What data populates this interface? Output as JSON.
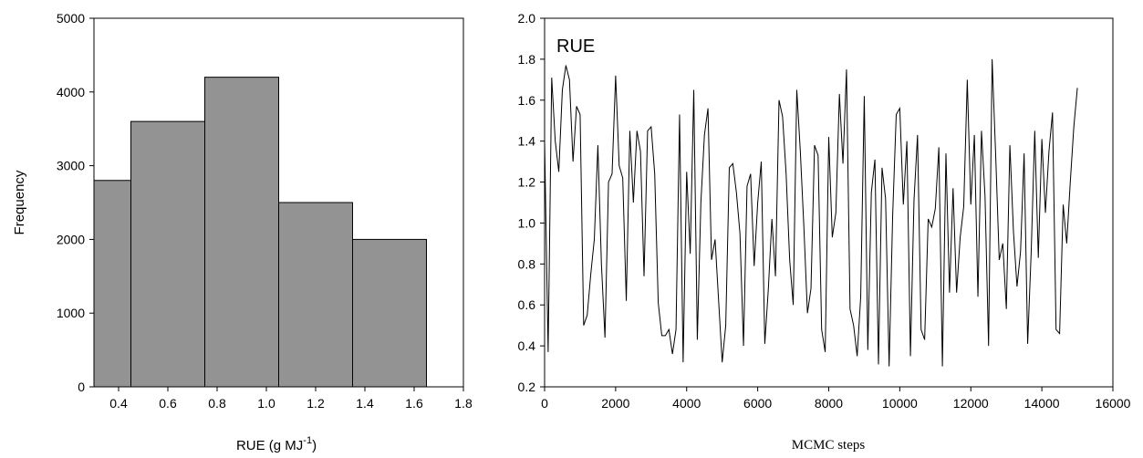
{
  "chart_data": [
    {
      "type": "bar",
      "subtype": "histogram",
      "bins": [
        {
          "start": 0.3,
          "end": 0.45,
          "value": 2800
        },
        {
          "start": 0.45,
          "end": 0.75,
          "value": 3600
        },
        {
          "start": 0.75,
          "end": 1.05,
          "value": 4200
        },
        {
          "start": 1.05,
          "end": 1.35,
          "value": 2500
        },
        {
          "start": 1.35,
          "end": 1.65,
          "value": 2000
        }
      ],
      "xlabel": "RUE (g MJ",
      "xlabel_sup": "-1",
      "xlabel_close": ")",
      "ylabel": "Frequency",
      "xlim": [
        0.3,
        1.8
      ],
      "ylim": [
        0,
        5000
      ],
      "xticks": [
        "0.4",
        "0.6",
        "0.8",
        "1.0",
        "1.2",
        "1.4",
        "1.6",
        "1.8"
      ],
      "yticks": [
        "0",
        "1000",
        "2000",
        "3000",
        "4000",
        "5000"
      ],
      "bar_color": "#939393",
      "grid": false
    },
    {
      "type": "line",
      "title": "RUE",
      "xlabel": "MCMC steps",
      "ylabel": "",
      "xlim": [
        0,
        16000
      ],
      "ylim": [
        0.2,
        2.0
      ],
      "xticks": [
        "0",
        "2000",
        "4000",
        "6000",
        "8000",
        "10000",
        "12000",
        "14000",
        "16000"
      ],
      "yticks": [
        "0.2",
        "0.4",
        "0.6",
        "0.8",
        "1.0",
        "1.2",
        "1.4",
        "1.6",
        "1.8",
        "2.0"
      ],
      "grid": false,
      "series": [
        {
          "x": [
            0,
            100,
            200,
            300,
            400,
            500,
            600,
            700,
            800,
            900,
            1000,
            1100,
            1200,
            1300,
            1400,
            1500,
            1600,
            1700,
            1800,
            1900,
            2000,
            2100,
            2200,
            2300,
            2400,
            2500,
            2600,
            2700,
            2800,
            2900,
            3000,
            3100,
            3200,
            3300,
            3400,
            3500,
            3600,
            3700,
            3800,
            3900,
            4000,
            4100,
            4200,
            4300,
            4400,
            4500,
            4600,
            4700,
            4800,
            4900,
            5000,
            5100,
            5200,
            5300,
            5400,
            5500,
            5600,
            5700,
            5800,
            5900,
            6000,
            6100,
            6200,
            6300,
            6400,
            6500,
            6600,
            6700,
            6800,
            6900,
            7000,
            7100,
            7200,
            7300,
            7400,
            7500,
            7600,
            7700,
            7800,
            7900,
            8000,
            8100,
            8200,
            8300,
            8400,
            8500,
            8600,
            8700,
            8800,
            8900,
            9000,
            9100,
            9200,
            9300,
            9400,
            9500,
            9600,
            9700,
            9800,
            9900,
            10000,
            10100,
            10200,
            10300,
            10400,
            10500,
            10600,
            10700,
            10800,
            10900,
            11000,
            11100,
            11200,
            11300,
            11400,
            11500,
            11600,
            11700,
            11800,
            11900,
            12000,
            12100,
            12200,
            12300,
            12400,
            12500,
            12600,
            12700,
            12800,
            12900,
            13000,
            13100,
            13200,
            13300,
            13400,
            13500,
            13600,
            13700,
            13800,
            13900,
            14000,
            14100,
            14200,
            14300,
            14400,
            14500,
            14600,
            14700,
            14800,
            14900,
            15000
          ],
          "values": [
            1.4,
            0.37,
            1.71,
            1.4,
            1.25,
            1.65,
            1.77,
            1.7,
            1.3,
            1.57,
            1.53,
            0.5,
            0.55,
            0.75,
            0.92,
            1.38,
            0.8,
            0.44,
            1.2,
            1.24,
            1.72,
            1.28,
            1.22,
            0.62,
            1.45,
            1.1,
            1.45,
            1.35,
            0.74,
            1.45,
            1.47,
            1.24,
            0.61,
            0.45,
            0.45,
            0.48,
            0.36,
            0.48,
            1.53,
            0.32,
            1.25,
            0.85,
            1.65,
            0.43,
            1.1,
            1.43,
            1.56,
            0.82,
            0.92,
            0.62,
            0.32,
            0.5,
            1.27,
            1.29,
            1.15,
            0.95,
            0.4,
            1.18,
            1.24,
            0.79,
            1.1,
            1.3,
            0.41,
            0.68,
            1.02,
            0.74,
            1.6,
            1.52,
            1.24,
            0.82,
            0.6,
            1.65,
            1.35,
            0.98,
            0.56,
            0.68,
            1.38,
            1.33,
            0.48,
            0.37,
            1.42,
            0.93,
            1.05,
            1.63,
            1.29,
            1.75,
            0.58,
            0.5,
            0.35,
            0.64,
            1.62,
            0.38,
            1.15,
            1.31,
            0.31,
            1.27,
            1.12,
            0.3,
            1.04,
            1.53,
            1.56,
            1.09,
            1.4,
            0.35,
            1.11,
            1.43,
            0.48,
            0.43,
            1.02,
            0.98,
            1.07,
            1.37,
            0.3,
            1.34,
            0.66,
            1.17,
            0.66,
            0.93,
            1.08,
            1.7,
            1.09,
            1.43,
            0.64,
            1.45,
            1.13,
            0.4,
            1.8,
            1.33,
            0.82,
            0.9,
            0.58,
            1.38,
            0.96,
            0.69,
            0.86,
            1.34,
            0.41,
            0.86,
            1.45,
            0.83,
            1.41,
            1.05,
            1.35,
            1.54,
            0.48,
            0.46,
            1.09,
            0.9,
            1.2,
            1.47,
            1.66
          ]
        }
      ]
    }
  ]
}
